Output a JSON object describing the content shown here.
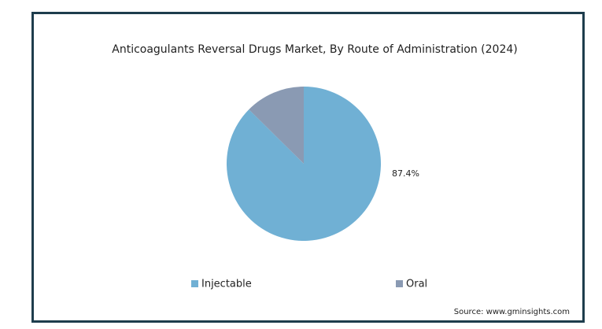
{
  "chart_data": {
    "type": "pie",
    "title": "Anticoagulants Reversal Drugs Market, By Route of Administration (2024)",
    "categories": [
      "Injectable",
      "Oral"
    ],
    "values": [
      87.4,
      12.6
    ],
    "value_labels": [
      "87.4%",
      null
    ],
    "colors": [
      "#70b0d4",
      "#8a9ab3"
    ],
    "legend": "bottom",
    "source": "Source: www.gminsights.com"
  }
}
